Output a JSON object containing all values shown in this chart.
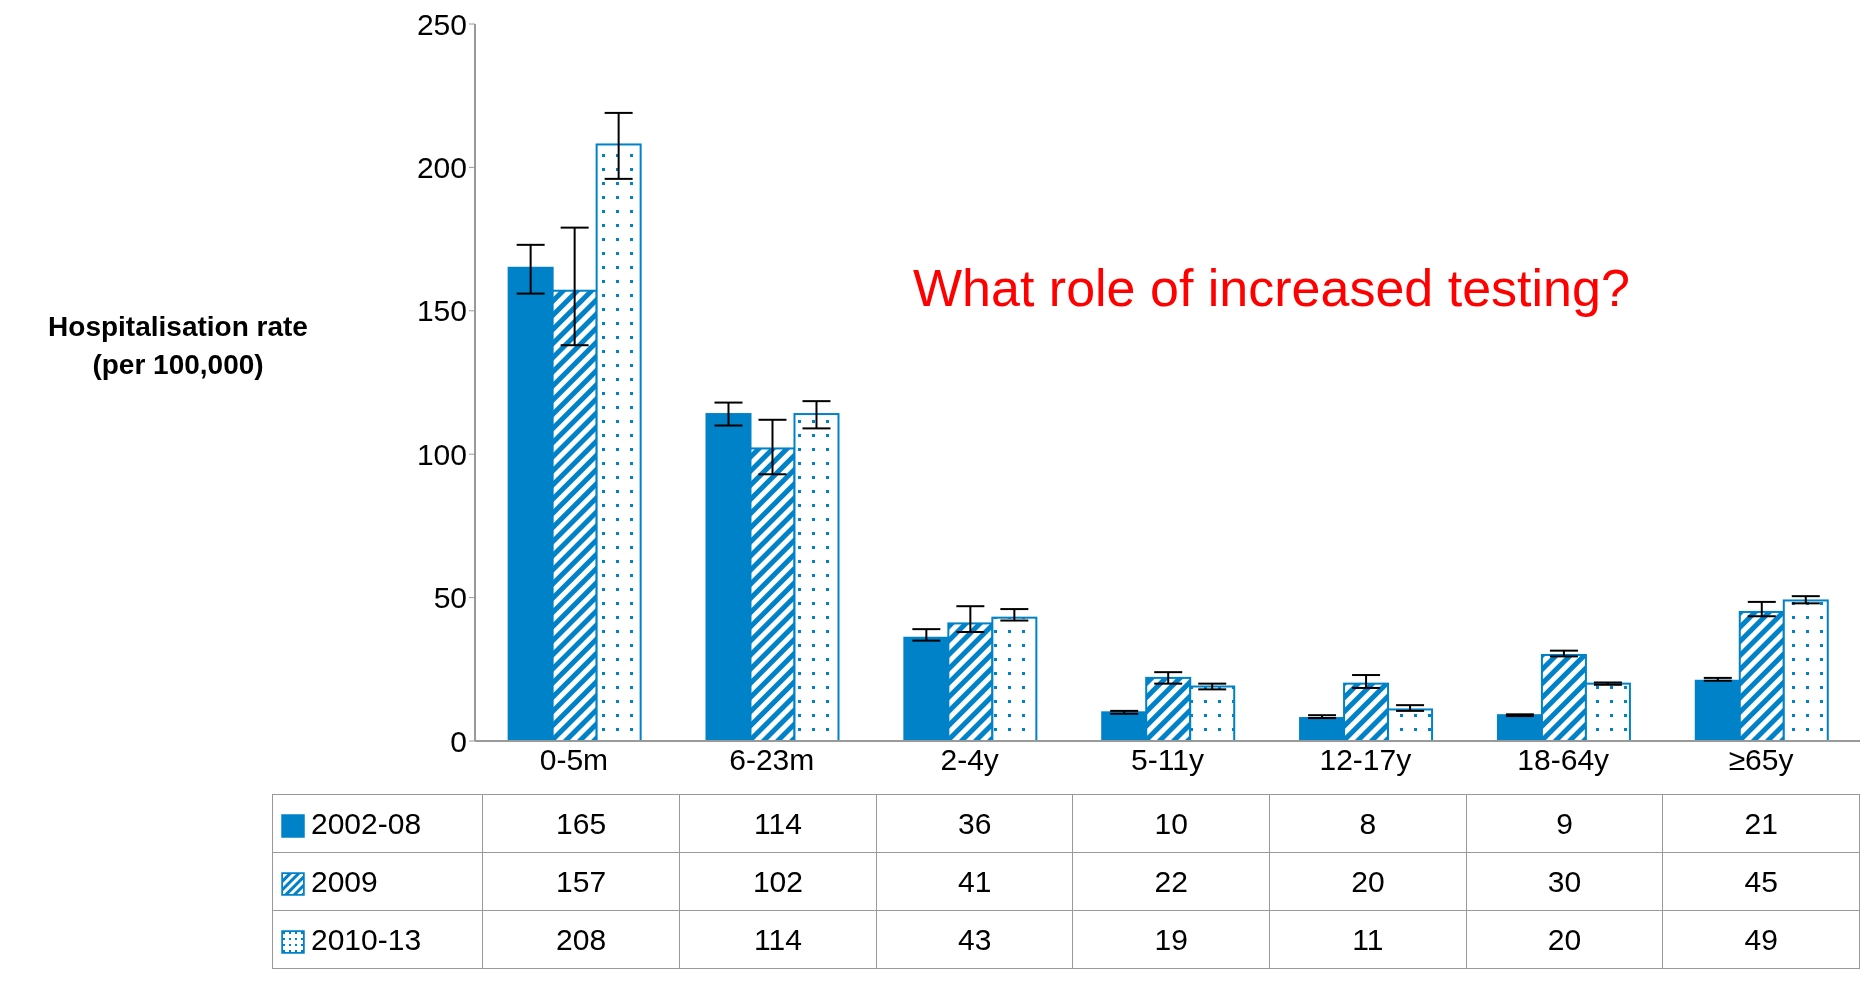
{
  "chart_data": {
    "type": "bar",
    "ylabel": "Hospitalisation rate (per 100,000)",
    "categories": [
      "0-5m",
      "6-23m",
      "2-4y",
      "5-11y",
      "12-17y",
      "18-64y",
      "≥65y"
    ],
    "series": [
      {
        "name": "2002-08",
        "color": "#0082c8",
        "values": [
          165,
          114,
          36,
          10,
          8,
          9,
          21
        ],
        "errors": [
          [
            156,
            173
          ],
          [
            110,
            118
          ],
          [
            35,
            39
          ],
          [
            9.5,
            10.5
          ],
          [
            8,
            9
          ],
          [
            8.7,
            9.3
          ],
          [
            21,
            22
          ]
        ]
      },
      {
        "name": "2009",
        "color": "#0082c8",
        "values": [
          157,
          102,
          41,
          22,
          20,
          30,
          45
        ],
        "errors": [
          [
            138,
            179
          ],
          [
            93,
            112
          ],
          [
            38,
            47
          ],
          [
            20,
            24
          ],
          [
            18.5,
            23
          ],
          [
            29.5,
            31.5
          ],
          [
            43.5,
            48.5
          ]
        ]
      },
      {
        "name": "2010-13",
        "color": "#0082c8",
        "values": [
          208,
          114,
          43,
          19,
          11,
          20,
          49
        ],
        "errors": [
          [
            196,
            219
          ],
          [
            109,
            118.5
          ],
          [
            42,
            46
          ],
          [
            18,
            20
          ],
          [
            10.5,
            12.5
          ],
          [
            19.6,
            20.4
          ],
          [
            48,
            50.5
          ]
        ]
      }
    ],
    "ylim": [
      0,
      250
    ],
    "yticks": [
      0,
      50,
      100,
      150,
      200,
      250
    ],
    "grid": false,
    "legend": "bottom",
    "data_labels": true,
    "annotations": [
      "What role of increased testing?"
    ]
  }
}
